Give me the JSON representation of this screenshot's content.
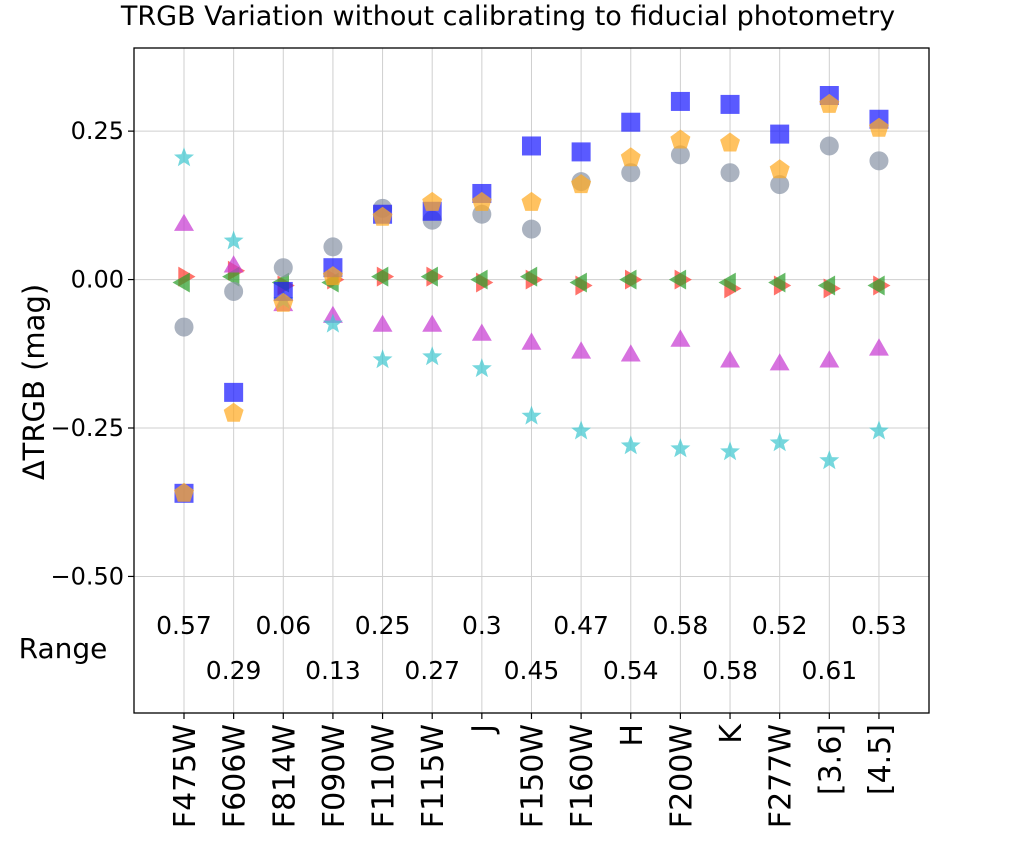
{
  "chart_data": {
    "type": "scatter",
    "title": "TRGB Variation without calibrating to fiducial photometry",
    "ylabel": "ΔTRGB (mag)",
    "xlabel": "",
    "ylim": [
      -0.73,
      0.39
    ],
    "yticks": [
      0.25,
      0.0,
      -0.25,
      -0.5
    ],
    "ytick_labels": [
      "0.25",
      "0.00",
      "−0.25",
      "−0.50"
    ],
    "grid": true,
    "categories": [
      "F475W",
      "F606W",
      "F814W",
      "F090W",
      "F110W",
      "F115W",
      "J",
      "F150W",
      "F160W",
      "H",
      "F200W",
      "K",
      "F277W",
      "[3.6]",
      "[4.5]"
    ],
    "range_label": "Range",
    "range_values": [
      "0.57",
      "0.29",
      "0.06",
      "0.13",
      "0.25",
      "0.27",
      "0.3",
      "0.45",
      "0.47",
      "0.54",
      "0.58",
      "0.58",
      "0.52",
      "0.61",
      "0.53"
    ],
    "series": [
      {
        "marker": "triangle-right",
        "color": "#ff3b30",
        "values": [
          0.005,
          0.015,
          -0.01,
          0.0,
          0.005,
          0.005,
          -0.005,
          0.0,
          -0.01,
          0.0,
          0.0,
          -0.015,
          -0.01,
          -0.015,
          -0.01
        ]
      },
      {
        "marker": "triangle-left",
        "color": "#2ca02c",
        "values": [
          -0.005,
          0.005,
          -0.005,
          -0.005,
          0.005,
          0.005,
          0.0,
          0.005,
          -0.005,
          0.0,
          0.0,
          -0.005,
          -0.005,
          -0.01,
          -0.01
        ]
      },
      {
        "marker": "triangle-up",
        "color": "#c83cd2",
        "values": [
          0.095,
          0.025,
          -0.04,
          -0.06,
          -0.075,
          -0.075,
          -0.09,
          -0.105,
          -0.12,
          -0.125,
          -0.1,
          -0.135,
          -0.14,
          -0.135,
          -0.115
        ]
      },
      {
        "marker": "star",
        "color": "#40c8d0",
        "values": [
          0.205,
          0.065,
          -0.035,
          -0.075,
          -0.135,
          -0.13,
          -0.15,
          -0.23,
          -0.255,
          -0.28,
          -0.285,
          -0.29,
          -0.275,
          -0.305,
          -0.255
        ]
      },
      {
        "marker": "circle",
        "color": "#8a96a8",
        "values": [
          -0.08,
          -0.02,
          0.02,
          0.055,
          0.12,
          0.1,
          0.11,
          0.085,
          0.165,
          0.18,
          0.21,
          0.18,
          0.16,
          0.225,
          0.2
        ]
      },
      {
        "marker": "square",
        "color": "#1a1aff",
        "values": [
          -0.36,
          -0.19,
          -0.02,
          0.02,
          0.11,
          0.115,
          0.145,
          0.225,
          0.215,
          0.265,
          0.3,
          0.295,
          0.245,
          0.31,
          0.27
        ]
      },
      {
        "marker": "pentagon",
        "color": "#ffaa22",
        "values": [
          -0.36,
          -0.225,
          -0.04,
          0.005,
          0.105,
          0.13,
          0.13,
          0.13,
          0.16,
          0.205,
          0.235,
          0.23,
          0.185,
          0.295,
          0.255
        ]
      }
    ]
  }
}
